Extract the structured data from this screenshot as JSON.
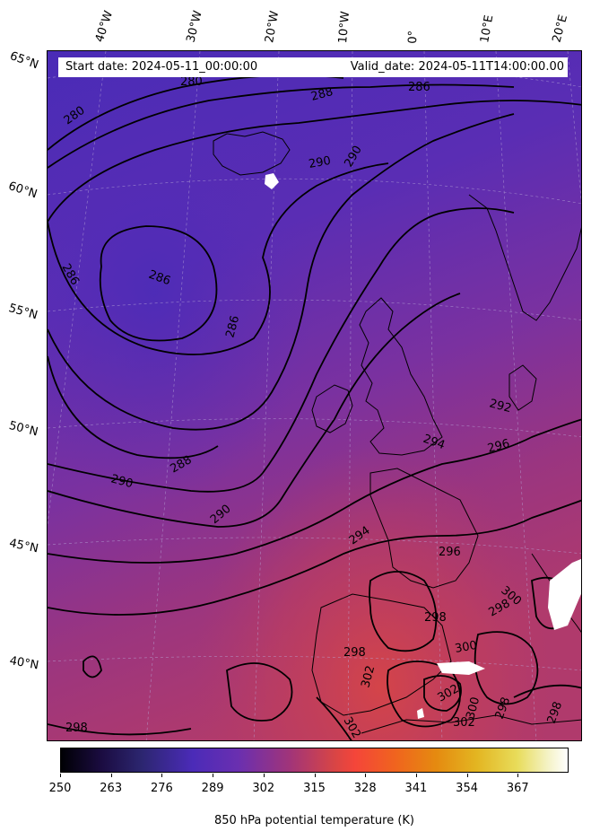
{
  "header": {
    "start_date": "Start date: 2024-05-11_00:00:00",
    "valid_date": "Valid_date: 2024-05-11T14:00:00.00"
  },
  "longitude_labels": [
    "40°W",
    "30°W",
    "20°W",
    "10°W",
    "0°",
    "10°E",
    "20°E"
  ],
  "latitude_labels": [
    "65°N",
    "60°N",
    "55°N",
    "50°N",
    "45°N",
    "40°N"
  ],
  "contour_labels": [
    "280",
    "280",
    "286",
    "288",
    "290",
    "290",
    "286",
    "286",
    "288",
    "290",
    "290",
    "292",
    "294",
    "294",
    "296",
    "296",
    "298",
    "298",
    "298",
    "300",
    "300",
    "302",
    "302",
    "302",
    "300",
    "298",
    "298",
    "298",
    "302",
    "302",
    "286"
  ],
  "colorbar": {
    "ticks": [
      "250",
      "263",
      "276",
      "289",
      "302",
      "315",
      "328",
      "341",
      "354",
      "367"
    ],
    "title": "850 hPa potential temperature (K)"
  },
  "colors": {
    "cold": "#4b2bb8",
    "mid": "#6a2fb0",
    "warm": "#b23a6a",
    "hot": "#d84545",
    "contour": "#000000"
  }
}
